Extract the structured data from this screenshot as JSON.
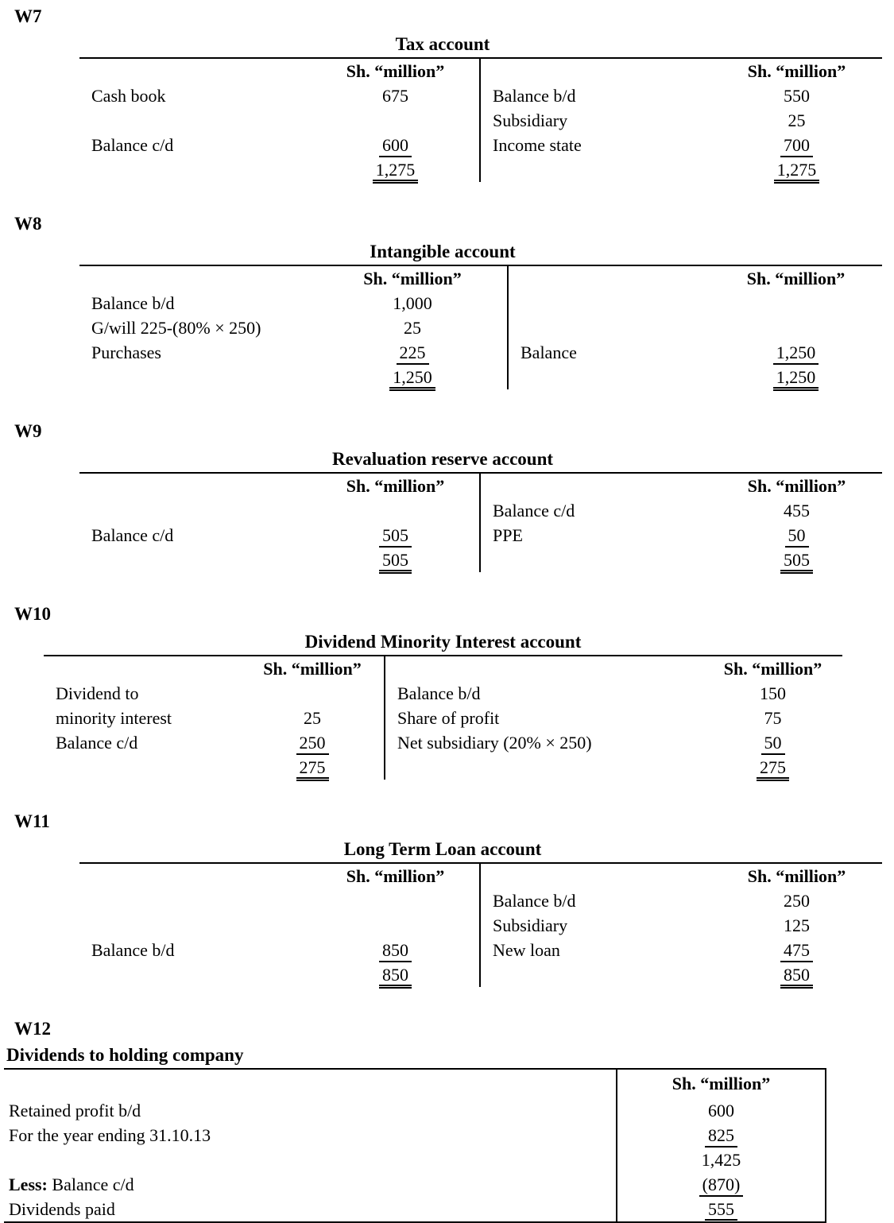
{
  "accounts": [
    {
      "id": "W7",
      "title": "Tax account",
      "col_header": "Sh. “million”",
      "left": {
        "rows": [
          {
            "label": "Cash book",
            "amount": "675"
          },
          {
            "label": "",
            "amount": ""
          },
          {
            "label": "Balance c/d",
            "amount": "600"
          },
          {
            "label": "",
            "amount": "1,275"
          }
        ]
      },
      "right": {
        "rows": [
          {
            "label": "Balance b/d",
            "amount": "550"
          },
          {
            "label": "Subsidiary",
            "amount": "25"
          },
          {
            "label": "Income state",
            "amount": "700"
          },
          {
            "label": "",
            "amount": "1,275"
          }
        ]
      }
    },
    {
      "id": "W8",
      "title": "Intangible account",
      "col_header": "Sh. “million”",
      "left": {
        "rows": [
          {
            "label": "Balance b/d",
            "amount": "1,000"
          },
          {
            "label": "G/will 225-(80% × 250)",
            "amount": "25"
          },
          {
            "label": "Purchases",
            "amount": "225"
          },
          {
            "label": "",
            "amount": "1,250"
          }
        ]
      },
      "right": {
        "rows": [
          {
            "label": "",
            "amount": ""
          },
          {
            "label": "",
            "amount": ""
          },
          {
            "label": "Balance",
            "amount": "1,250"
          },
          {
            "label": "",
            "amount": "1,250"
          }
        ]
      }
    },
    {
      "id": "W9",
      "title": "Revaluation reserve account",
      "col_header": "Sh. “million”",
      "left": {
        "rows": [
          {
            "label": "",
            "amount": ""
          },
          {
            "label": "Balance c/d",
            "amount": "505"
          },
          {
            "label": "",
            "amount": "505"
          }
        ]
      },
      "right": {
        "rows": [
          {
            "label": "Balance c/d",
            "amount": "455"
          },
          {
            "label": "PPE",
            "amount": "50"
          },
          {
            "label": "",
            "amount": "505"
          }
        ]
      }
    },
    {
      "id": "W10",
      "title": "Dividend Minority Interest account",
      "col_header": "Sh. “million”",
      "left": {
        "rows": [
          {
            "label": "Dividend to",
            "amount": ""
          },
          {
            "label": "minority interest",
            "amount": "25"
          },
          {
            "label": "Balance c/d",
            "amount": "250"
          },
          {
            "label": "",
            "amount": "275"
          }
        ]
      },
      "right": {
        "rows": [
          {
            "label": "Balance b/d",
            "amount": "150"
          },
          {
            "label": "Share of profit",
            "amount": "75"
          },
          {
            "label": "Net subsidiary (20% × 250)",
            "amount": "50"
          },
          {
            "label": "",
            "amount": "275"
          }
        ]
      }
    },
    {
      "id": "W11",
      "title": "Long Term Loan account",
      "col_header": "Sh. “million”",
      "left": {
        "rows": [
          {
            "label": "",
            "amount": ""
          },
          {
            "label": "",
            "amount": ""
          },
          {
            "label": "Balance b/d",
            "amount": "850"
          },
          {
            "label": "",
            "amount": "850"
          }
        ]
      },
      "right": {
        "rows": [
          {
            "label": "Balance b/d",
            "amount": "250"
          },
          {
            "label": "Subsidiary",
            "amount": "125"
          },
          {
            "label": "New loan",
            "amount": "475"
          },
          {
            "label": "",
            "amount": "850"
          }
        ]
      }
    }
  ],
  "w12": {
    "id": "W12",
    "subtitle": "Dividends to holding company",
    "col_header": "Sh. “million”",
    "rows": [
      {
        "label": "Retained profit b/d",
        "amount": "600"
      },
      {
        "label": "For the year ending 31.10.13",
        "amount": "825"
      },
      {
        "label": "",
        "amount": "1,425"
      },
      {
        "label_bold": "Less:",
        "label": " Balance c/d",
        "amount": "(870)"
      },
      {
        "label": "Dividends paid",
        "amount": "555"
      }
    ]
  }
}
